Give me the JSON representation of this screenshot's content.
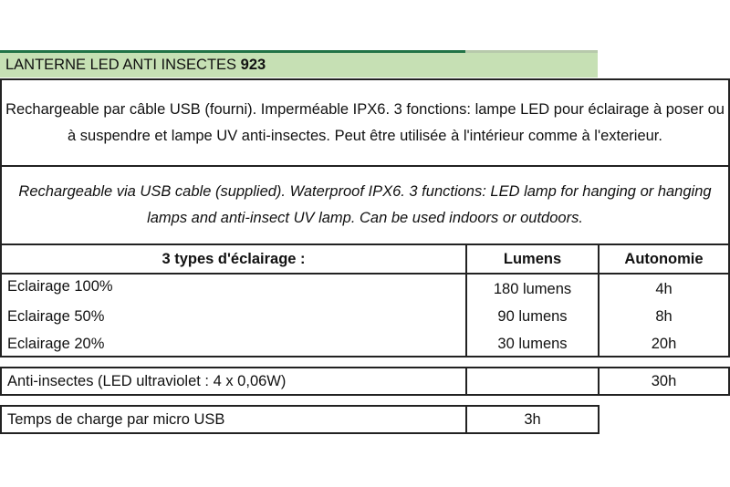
{
  "title": {
    "text": "LANTERNE LED ANTI INSECTES",
    "number": "923"
  },
  "description_fr": "Rechargeable par câble USB (fourni). Imperméable IPX6. 3 fonctions: lampe LED pour éclairage à poser ou à suspendre et lampe UV anti-insectes.  Peut être utilisée à l'intérieur comme à l'exterieur.",
  "description_en": "Rechargeable via USB cable (supplied). Waterproof IPX6. 3 functions: LED lamp for hanging or hanging lamps and anti-insect UV lamp. Can be used indoors or outdoors.",
  "table": {
    "headers": [
      "3 types d'éclairage :",
      "Lumens",
      "Autonomie"
    ],
    "rows": [
      [
        "Eclairage 100%",
        "180 lumens",
        "4h"
      ],
      [
        "Eclairage 50%",
        "90 lumens",
        "8h"
      ],
      [
        "Eclairage 20%",
        "30 lumens",
        "20h"
      ]
    ],
    "anti_insect": [
      "Anti-insectes (LED ultraviolet : 4 x 0,06W)",
      "",
      "30h"
    ],
    "charge": [
      "Temps de charge par micro USB",
      "3h"
    ]
  },
  "colors": {
    "title_fill": "#c6e0b4",
    "title_line": "#217346"
  }
}
